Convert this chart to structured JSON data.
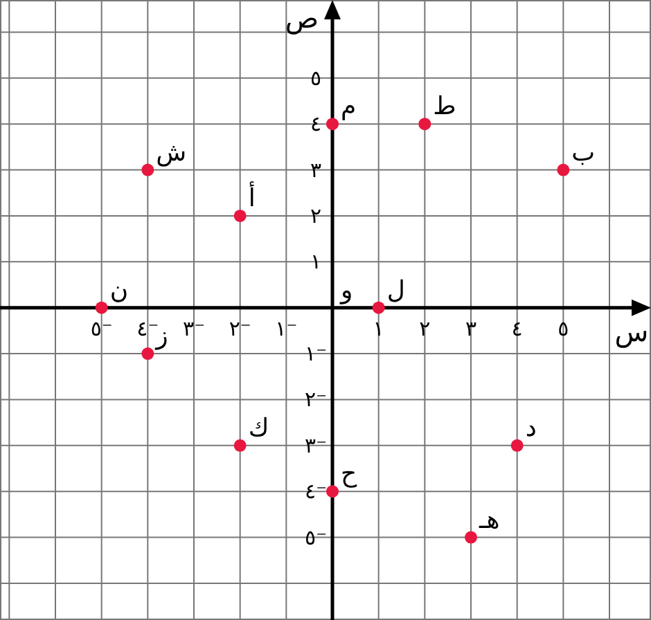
{
  "chart_data": {
    "type": "scatter",
    "xlabel": "س",
    "ylabel": "ص",
    "x": [
      -5,
      -4,
      -4,
      -2,
      -2,
      0,
      0,
      1,
      2,
      3,
      4,
      5
    ],
    "series": [
      {
        "color": "#e8173f",
        "values": [
          0,
          -1,
          3,
          2,
          -3,
          -4,
          4,
          0,
          4,
          -5,
          -3,
          3
        ]
      }
    ],
    "marker": "circle",
    "grid": true,
    "xlim": [
      -7.2,
      6.9
    ],
    "ylim": [
      -6.8,
      6.7
    ],
    "xticks": [
      {
        "value": -7,
        "label": null
      },
      {
        "value": -6,
        "label": null
      },
      {
        "value": -5,
        "label": "٥⁻"
      },
      {
        "value": -4,
        "label": "٤⁻"
      },
      {
        "value": -3,
        "label": "٣⁻"
      },
      {
        "value": -2,
        "label": "٢⁻"
      },
      {
        "value": -1,
        "label": "١⁻"
      },
      {
        "value": 1,
        "label": "١"
      },
      {
        "value": 2,
        "label": "٢"
      },
      {
        "value": 3,
        "label": "٣"
      },
      {
        "value": 4,
        "label": "٤"
      },
      {
        "value": 5,
        "label": "٥"
      },
      {
        "value": 6,
        "label": null
      }
    ],
    "yticks": [
      {
        "value": -6,
        "label": null
      },
      {
        "value": -5,
        "label": "٥⁻"
      },
      {
        "value": -4,
        "label": "٤⁻"
      },
      {
        "value": -3,
        "label": "٣⁻"
      },
      {
        "value": -2,
        "label": "٢⁻"
      },
      {
        "value": -1,
        "label": "١⁻"
      },
      {
        "value": 1,
        "label": "١"
      },
      {
        "value": 2,
        "label": "٢"
      },
      {
        "value": 3,
        "label": "٣"
      },
      {
        "value": 4,
        "label": "٤"
      },
      {
        "value": 5,
        "label": "٥"
      },
      {
        "value": 6,
        "label": null
      }
    ],
    "annotations": [
      {
        "text": "ن",
        "x": -5,
        "y": 0
      },
      {
        "text": "ز",
        "x": -4,
        "y": -1
      },
      {
        "text": "ش",
        "x": -4,
        "y": 3
      },
      {
        "text": "أ",
        "x": -2,
        "y": 2
      },
      {
        "text": "ك",
        "x": -2,
        "y": -3
      },
      {
        "text": "ح",
        "x": 0,
        "y": -4
      },
      {
        "text": "م",
        "x": 0,
        "y": 4
      },
      "و",
      {
        "text": "ل",
        "x": 1,
        "y": 0
      },
      {
        "text": "ط",
        "x": 2,
        "y": 4
      },
      {
        "text": "هـ",
        "x": 3,
        "y": -5
      },
      {
        "text": "د",
        "x": 4,
        "y": -3
      },
      {
        "text": "ب",
        "x": 5,
        "y": 3
      }
    ]
  }
}
